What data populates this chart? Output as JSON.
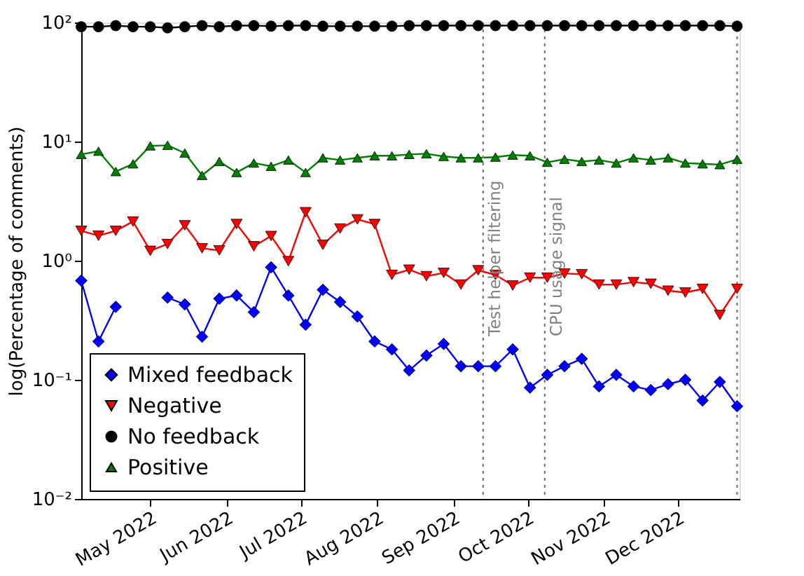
{
  "chart_data": {
    "type": "line",
    "ylabel": "log(Percentage of comments)",
    "log": "y",
    "legend": "bottom left",
    "xlim": [
      "2022-04-03",
      "2022-12-26"
    ],
    "ylim": [
      0.01,
      100
    ],
    "yticks": [
      {
        "value": 0.01,
        "label": "10⁻²"
      },
      {
        "value": 0.1,
        "label": "10⁻¹"
      },
      {
        "value": 1,
        "label": "10⁰"
      },
      {
        "value": 10,
        "label": "10¹"
      },
      {
        "value": 100,
        "label": "10²"
      }
    ],
    "xticks": [
      {
        "value": "2022-05-01",
        "label": "May 2022"
      },
      {
        "value": "2022-06-01",
        "label": "Jun 2022"
      },
      {
        "value": "2022-07-01",
        "label": "Jul 2022"
      },
      {
        "value": "2022-08-01",
        "label": "Aug 2022"
      },
      {
        "value": "2022-09-01",
        "label": "Sep 2022"
      },
      {
        "value": "2022-10-01",
        "label": "Oct 2022"
      },
      {
        "value": "2022-11-01",
        "label": "Nov 2022"
      },
      {
        "value": "2022-12-01",
        "label": "Dec 2022"
      }
    ],
    "x": [
      "2022-04-03",
      "2022-04-10",
      "2022-04-17",
      "2022-04-24",
      "2022-05-01",
      "2022-05-08",
      "2022-05-15",
      "2022-05-22",
      "2022-05-29",
      "2022-06-05",
      "2022-06-12",
      "2022-06-19",
      "2022-06-26",
      "2022-07-03",
      "2022-07-10",
      "2022-07-17",
      "2022-07-24",
      "2022-07-31",
      "2022-08-07",
      "2022-08-14",
      "2022-08-21",
      "2022-08-28",
      "2022-09-04",
      "2022-09-11",
      "2022-09-18",
      "2022-09-25",
      "2022-10-02",
      "2022-10-09",
      "2022-10-16",
      "2022-10-23",
      "2022-10-30",
      "2022-11-06",
      "2022-11-13",
      "2022-11-20",
      "2022-11-27",
      "2022-12-04",
      "2022-12-11",
      "2022-12-18",
      "2022-12-25"
    ],
    "series": [
      {
        "name": "Mixed feedback",
        "color": "#0000ff",
        "marker": "diamond",
        "values": [
          0.68,
          0.21,
          0.41,
          null,
          null,
          0.49,
          0.43,
          0.23,
          0.48,
          0.51,
          0.37,
          0.88,
          0.51,
          0.29,
          0.57,
          0.45,
          0.34,
          0.21,
          0.18,
          0.12,
          0.16,
          0.2,
          0.13,
          0.13,
          0.13,
          0.18,
          0.086,
          0.11,
          0.13,
          0.15,
          0.088,
          0.11,
          0.088,
          0.082,
          0.092,
          0.1,
          0.067,
          0.096,
          0.06
        ]
      },
      {
        "name": "Negative",
        "color": "#ff0000",
        "marker": "triangle-down",
        "values": [
          1.78,
          1.62,
          1.78,
          2.13,
          1.21,
          1.38,
          1.98,
          1.27,
          1.22,
          2.03,
          1.32,
          1.61,
          0.99,
          2.55,
          1.36,
          1.86,
          2.22,
          2.03,
          0.76,
          0.84,
          0.74,
          0.79,
          0.63,
          0.83,
          0.76,
          0.62,
          0.72,
          0.72,
          0.78,
          0.77,
          0.63,
          0.63,
          0.66,
          0.64,
          0.56,
          0.54,
          0.58,
          0.35,
          0.58
        ]
      },
      {
        "name": "No feedback",
        "color": "#000000",
        "marker": "circle",
        "values": [
          92,
          92,
          94,
          92,
          92,
          90,
          92,
          94,
          92,
          94,
          94,
          93,
          94,
          94,
          93,
          93,
          93,
          93,
          93,
          94,
          94,
          94,
          94,
          94,
          94,
          94,
          94,
          94,
          94,
          94,
          94,
          94,
          94,
          94,
          94,
          94,
          94,
          94,
          93
        ]
      },
      {
        "name": "Positive",
        "color": "#007f00",
        "marker": "triangle",
        "values": [
          7.8,
          8.3,
          5.6,
          6.5,
          9.2,
          9.3,
          8.0,
          5.2,
          6.8,
          5.5,
          6.6,
          6.2,
          7.0,
          5.5,
          7.3,
          7.0,
          7.3,
          7.6,
          7.6,
          7.8,
          7.9,
          7.5,
          7.3,
          7.3,
          7.4,
          7.7,
          7.6,
          6.7,
          7.1,
          6.8,
          7.0,
          6.6,
          7.3,
          7.0,
          7.3,
          6.6,
          6.5,
          6.4,
          7.1
        ]
      }
    ],
    "ref_lines": [
      {
        "axis": "x",
        "value": "2022-09-13",
        "label": "Test helper filtering",
        "color": "#808080",
        "line_style": "dotted"
      },
      {
        "axis": "x",
        "value": "2022-10-08",
        "label": "CPU usage signal",
        "color": "#808080",
        "line_style": "dotted"
      },
      {
        "axis": "x",
        "value": "2022-12-25",
        "color": "#808080",
        "line_style": "dotted"
      }
    ]
  }
}
